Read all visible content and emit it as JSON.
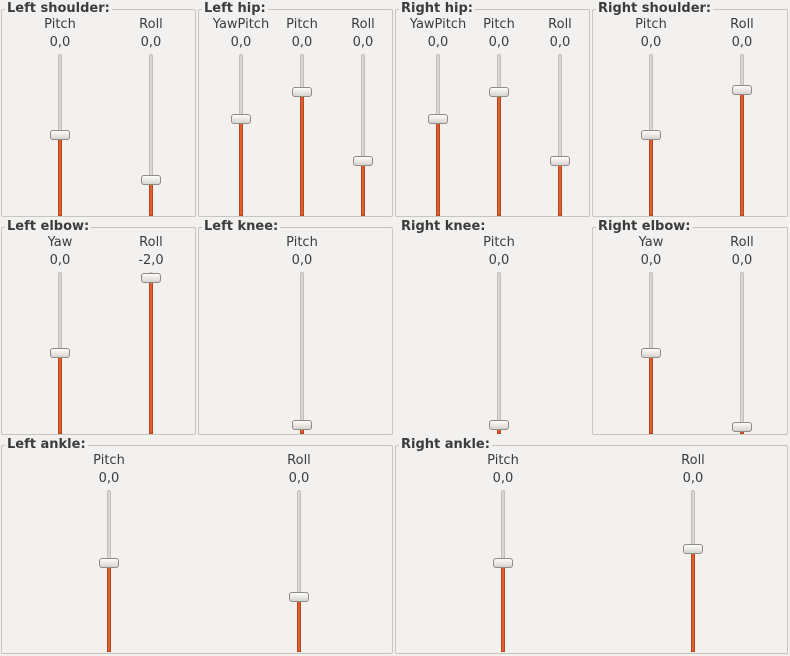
{
  "colors": {
    "fill": "#e0602e",
    "track": "#d9d7d4",
    "background": "#f2f1f0"
  },
  "left_shoulder": {
    "title": "Left shoulder:",
    "pitch": {
      "label": "Pitch",
      "value": "0,0",
      "level": 0.5
    },
    "roll": {
      "label": "Roll",
      "value": "0,0",
      "level": 0.22
    }
  },
  "left_hip": {
    "title": "Left hip:",
    "yawpitch": {
      "label": "YawPitch",
      "value": "0,0",
      "level": 0.6
    },
    "pitch": {
      "label": "Pitch",
      "value": "0,0",
      "level": 0.77
    },
    "roll": {
      "label": "Roll",
      "value": "0,0",
      "level": 0.34
    }
  },
  "right_hip": {
    "title": "Right hip:",
    "yawpitch": {
      "label": "YawPitch",
      "value": "0,0",
      "level": 0.6
    },
    "pitch": {
      "label": "Pitch",
      "value": "0,0",
      "level": 0.77
    },
    "roll": {
      "label": "Roll",
      "value": "0,0",
      "level": 0.34
    }
  },
  "right_shoulder": {
    "title": "Right shoulder:",
    "pitch": {
      "label": "Pitch",
      "value": "0,0",
      "level": 0.5
    },
    "roll": {
      "label": "Roll",
      "value": "0,0",
      "level": 0.78
    }
  },
  "left_elbow": {
    "title": "Left elbow:",
    "yaw": {
      "label": "Yaw",
      "value": "0,0",
      "level": 0.5
    },
    "roll": {
      "label": "Roll",
      "value": "-2,0",
      "level": 0.97
    }
  },
  "left_knee": {
    "title": "Left knee:",
    "pitch": {
      "label": "Pitch",
      "value": "0,0",
      "level": 0.05
    }
  },
  "right_knee": {
    "title": "Right knee:",
    "pitch": {
      "label": "Pitch",
      "value": "0,0",
      "level": 0.05
    }
  },
  "right_elbow": {
    "title": "Right elbow:",
    "yaw": {
      "label": "Yaw",
      "value": "0,0",
      "level": 0.5
    },
    "roll": {
      "label": "Roll",
      "value": "0,0",
      "level": 0.04
    }
  },
  "left_ankle": {
    "title": "Left ankle:",
    "pitch": {
      "label": "Pitch",
      "value": "0,0",
      "level": 0.55
    },
    "roll": {
      "label": "Roll",
      "value": "0,0",
      "level": 0.34
    }
  },
  "right_ankle": {
    "title": "Right ankle:",
    "pitch": {
      "label": "Pitch",
      "value": "0,0",
      "level": 0.55
    },
    "roll": {
      "label": "Roll",
      "value": "0,0",
      "level": 0.64
    }
  }
}
